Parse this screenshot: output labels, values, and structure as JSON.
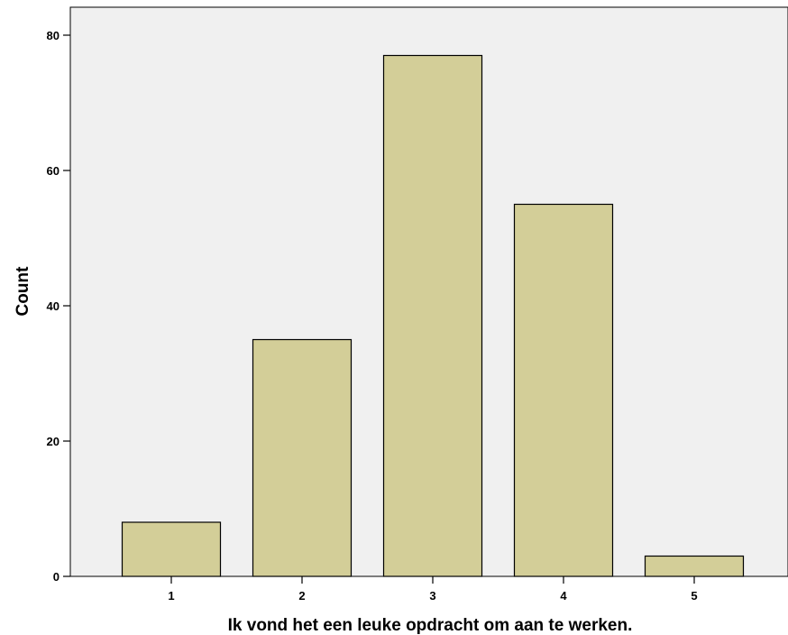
{
  "chart_data": {
    "type": "bar",
    "title": "",
    "xlabel": "Ik vond het een leuke opdracht om aan te werken.",
    "ylabel": "Count",
    "categories": [
      "1",
      "2",
      "3",
      "4",
      "5"
    ],
    "values": [
      8,
      35,
      77,
      55,
      3
    ],
    "ylim": [
      0,
      80
    ],
    "yticks": [
      "0",
      "20",
      "40",
      "60",
      "80"
    ],
    "grid": false,
    "legend": "none",
    "colors": {
      "bar_fill": "#d3ce98",
      "bar_stroke": "#000000",
      "plot_background": "#f0f0f0"
    }
  }
}
